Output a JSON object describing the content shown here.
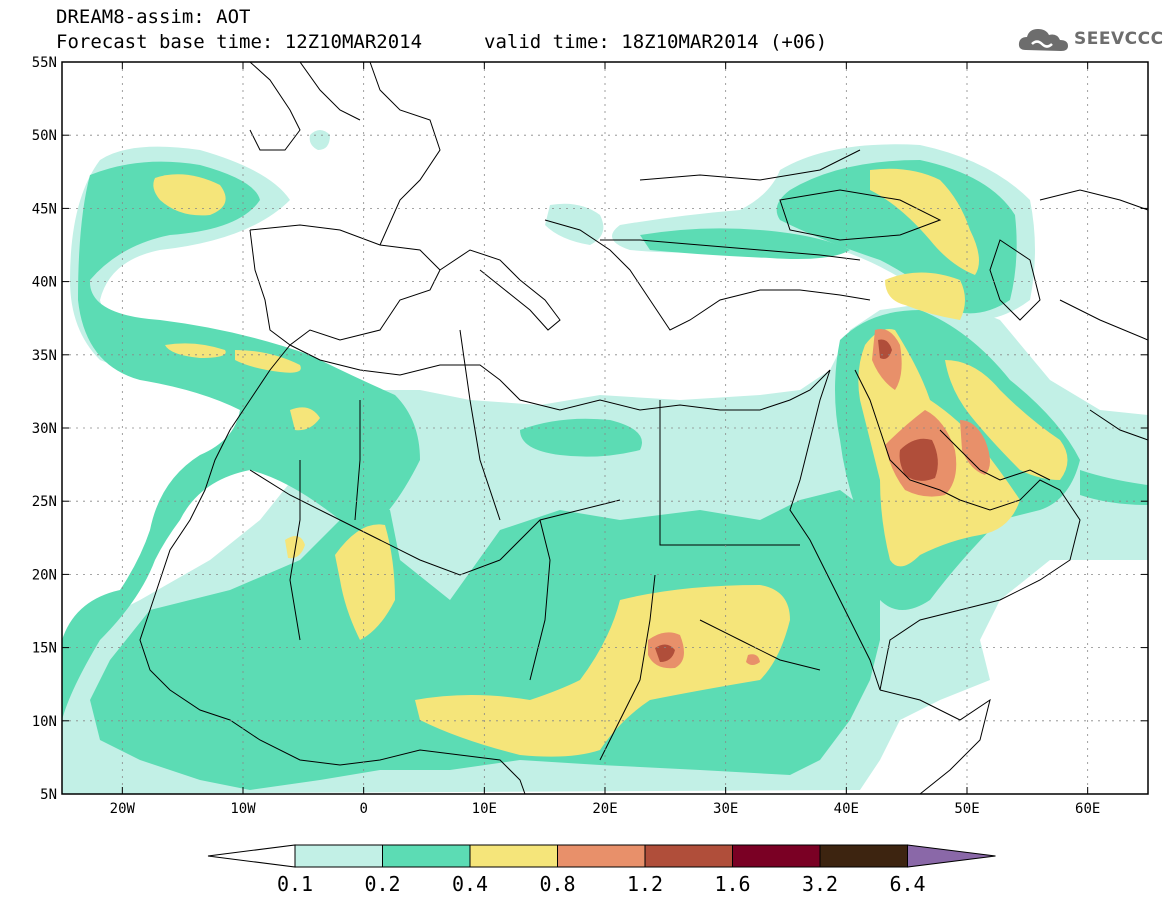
{
  "header": {
    "model_line": "DREAM8-assim: AOT",
    "base_time_line": "Forecast base time: 12Z10MAR2014",
    "valid_time_line": "valid time: 18Z10MAR2014 (+06)",
    "logo_text": "SEEVCCC"
  },
  "map": {
    "lon_range": [
      -25,
      65
    ],
    "lat_range": [
      5,
      55
    ],
    "lon_ticks": [
      {
        "value": -20,
        "label": "20W"
      },
      {
        "value": -10,
        "label": "10W"
      },
      {
        "value": 0,
        "label": "0"
      },
      {
        "value": 10,
        "label": "10E"
      },
      {
        "value": 20,
        "label": "20E"
      },
      {
        "value": 30,
        "label": "30E"
      },
      {
        "value": 40,
        "label": "40E"
      },
      {
        "value": 50,
        "label": "50E"
      },
      {
        "value": 60,
        "label": "60E"
      }
    ],
    "lat_ticks": [
      {
        "value": 5,
        "label": "5N"
      },
      {
        "value": 10,
        "label": "10N"
      },
      {
        "value": 15,
        "label": "15N"
      },
      {
        "value": 20,
        "label": "20N"
      },
      {
        "value": 25,
        "label": "25N"
      },
      {
        "value": 30,
        "label": "30N"
      },
      {
        "value": 35,
        "label": "35N"
      },
      {
        "value": 40,
        "label": "40N"
      },
      {
        "value": 45,
        "label": "45N"
      },
      {
        "value": 50,
        "label": "50N"
      },
      {
        "value": 55,
        "label": "55N"
      }
    ],
    "grid": true
  },
  "legend": {
    "bins": [
      {
        "color": "#ffffff"
      },
      {
        "color": "#c2f0e6"
      },
      {
        "color": "#5cdcb4"
      },
      {
        "color": "#f5e57a"
      },
      {
        "color": "#e8906a"
      },
      {
        "color": "#b04e3a"
      },
      {
        "color": "#7a0024"
      },
      {
        "color": "#3d2410"
      },
      {
        "color": "#8a68a8"
      }
    ],
    "labels": [
      "0.1",
      "0.2",
      "0.4",
      "0.8",
      "1.2",
      "1.6",
      "3.2",
      "6.4"
    ]
  },
  "colors": {
    "level_0_1": "#c2f0e6",
    "level_0_2": "#5cdcb4",
    "level_0_4": "#f5e57a",
    "level_0_8": "#e8906a",
    "level_1_2": "#b04e3a",
    "level_1_6": "#7a0024",
    "level_3_2": "#3d2410",
    "level_6_4": "#8a68a8"
  }
}
